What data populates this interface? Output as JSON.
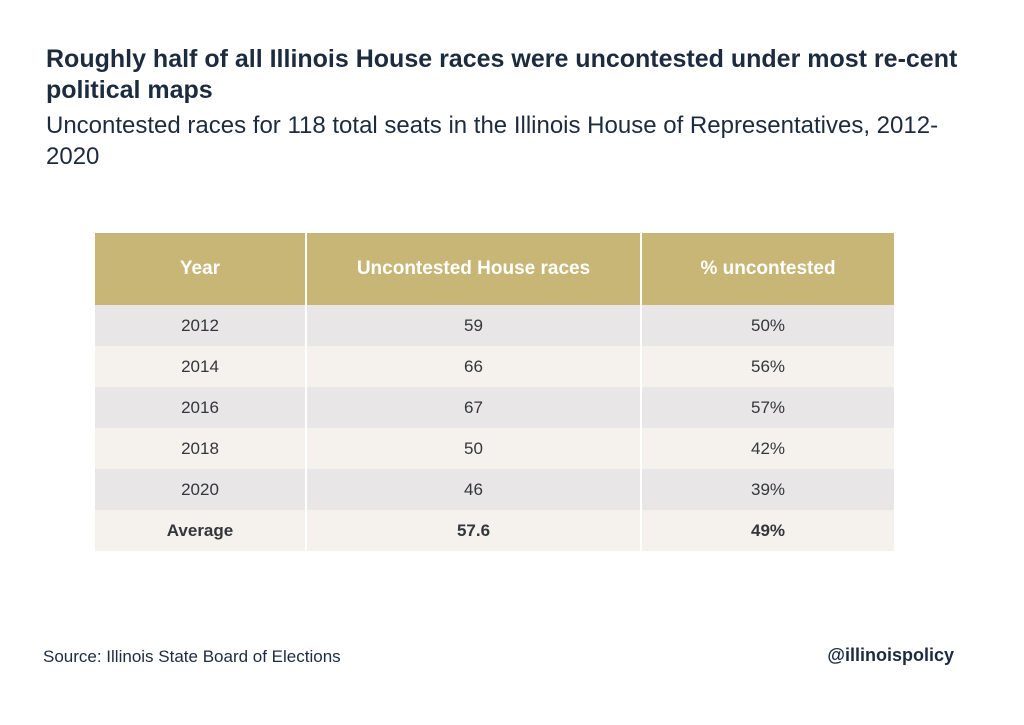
{
  "title": "Roughly half of all Illinois House races were uncontested under most re-cent political maps",
  "subtitle": "Uncontested races for 118 total seats in the Illinois House of Representatives, 2012-2020",
  "chart_data": {
    "type": "table",
    "columns": [
      "Year",
      "Uncontested House races",
      "% uncontested"
    ],
    "rows": [
      [
        "2012",
        "59",
        "50%"
      ],
      [
        "2014",
        "66",
        "56%"
      ],
      [
        "2016",
        "67",
        "57%"
      ],
      [
        "2018",
        "50",
        "42%"
      ],
      [
        "2020",
        "46",
        "39%"
      ]
    ],
    "summary_row": [
      "Average",
      "57.6",
      "49%"
    ]
  },
  "footer": {
    "source": "Source: Illinois State Board of Elections",
    "handle": "@illinoispolicy"
  },
  "colors": {
    "header_bg": "#c8b676",
    "row_odd": "#e8e6e6",
    "row_even": "#f5f2ee",
    "text_dark": "#1d2b3f"
  }
}
